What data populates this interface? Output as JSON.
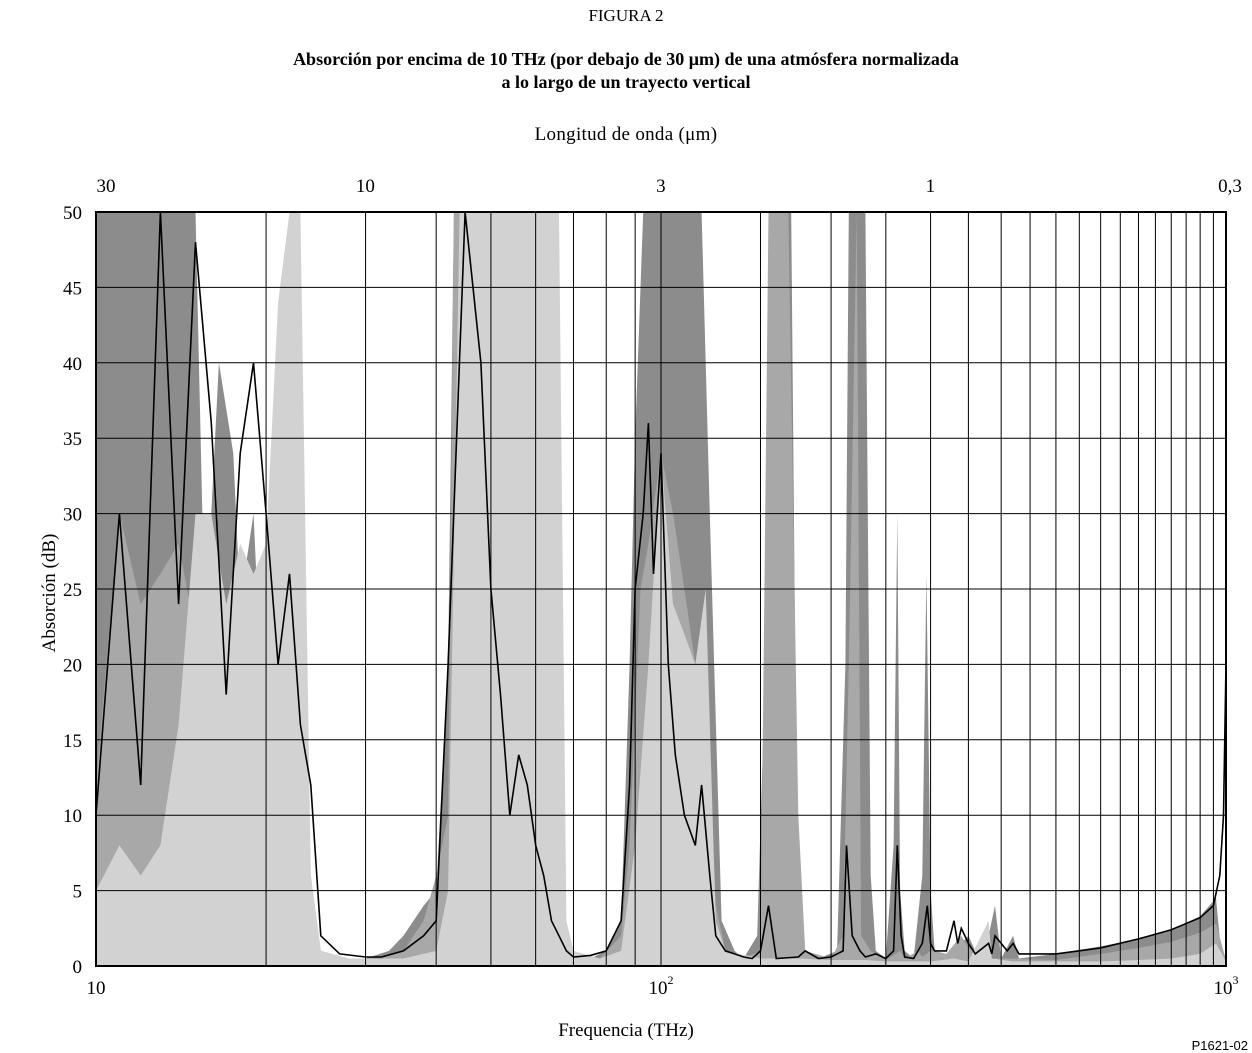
{
  "figure_number": "FIGURA 2",
  "title_line1": "Absorción por encima de 10 THz (por debajo de 30 μm) de una atmósfera normalizada",
  "title_line2": "a lo largo de un trayecto vertical",
  "reference": "P1621-02",
  "chart_data": {
    "type": "area",
    "x_scale": "log",
    "xlabel": "Frequencia (THz)",
    "ylabel": "Absorción (dB)",
    "top_axis_label": "Longitud de onda  (μm)",
    "xlim": [
      10,
      1000
    ],
    "ylim": [
      0,
      50
    ],
    "y_ticks": [
      0,
      5,
      10,
      15,
      20,
      25,
      30,
      35,
      40,
      45,
      50
    ],
    "x_tick_labels": [
      {
        "value": 10,
        "base": "10",
        "exp": ""
      },
      {
        "value": 100,
        "base": "10",
        "exp": "2"
      },
      {
        "value": 1000,
        "base": "10",
        "exp": "3"
      }
    ],
    "top_tick_labels": [
      {
        "wavelength_um": 30,
        "label": "30"
      },
      {
        "wavelength_um": 10,
        "label": "10"
      },
      {
        "wavelength_um": 3,
        "label": "3"
      },
      {
        "wavelength_um": 1,
        "label": "1"
      },
      {
        "wavelength_um": 0.3,
        "label": "0,3"
      }
    ],
    "grid": true,
    "colors": {
      "dark": "#8c8c8c",
      "medium": "#a8a8a8",
      "light": "#d2d2d2",
      "line": "#000000"
    },
    "series": [
      {
        "style": "dark",
        "points": [
          [
            10,
            50
          ],
          [
            11,
            50
          ],
          [
            12,
            50
          ],
          [
            13,
            50
          ],
          [
            14,
            50
          ],
          [
            15,
            50
          ],
          [
            15.6,
            22
          ],
          [
            16.5,
            40
          ],
          [
            17.5,
            34
          ],
          [
            18,
            24
          ],
          [
            19,
            30
          ],
          [
            20,
            12
          ],
          [
            21,
            22
          ],
          [
            22,
            10
          ],
          [
            23,
            14
          ],
          [
            24,
            4
          ],
          [
            24.5,
            1
          ],
          [
            26,
            0.5
          ],
          [
            28,
            0.5
          ],
          [
            30,
            0.5
          ],
          [
            33,
            1
          ],
          [
            35,
            2
          ],
          [
            38,
            4
          ],
          [
            40,
            5
          ],
          [
            42,
            20
          ],
          [
            43,
            50
          ],
          [
            48,
            50
          ],
          [
            49,
            30
          ],
          [
            52,
            20
          ],
          [
            55,
            14
          ],
          [
            58,
            16
          ],
          [
            60,
            10
          ],
          [
            62,
            8
          ],
          [
            64,
            4
          ],
          [
            66,
            1
          ],
          [
            70,
            0.5
          ],
          [
            75,
            0.5
          ],
          [
            80,
            1
          ],
          [
            85,
            3
          ],
          [
            88,
            20
          ],
          [
            90,
            35
          ],
          [
            93,
            50
          ],
          [
            110,
            50
          ],
          [
            118,
            50
          ],
          [
            122,
            30
          ],
          [
            128,
            3
          ],
          [
            135,
            1
          ],
          [
            140,
            0.5
          ],
          [
            148,
            2
          ],
          [
            153,
            20
          ],
          [
            156,
            50
          ],
          [
            170,
            50
          ],
          [
            174,
            8
          ],
          [
            180,
            1
          ],
          [
            190,
            0.5
          ],
          [
            205,
            1
          ],
          [
            212,
            20
          ],
          [
            215,
            50
          ],
          [
            230,
            50
          ],
          [
            235,
            6
          ],
          [
            240,
            1
          ],
          [
            250,
            0.5
          ],
          [
            258,
            8
          ],
          [
            262,
            30
          ],
          [
            265,
            5
          ],
          [
            270,
            1
          ],
          [
            280,
            0.5
          ],
          [
            290,
            6
          ],
          [
            295,
            26
          ],
          [
            300,
            5
          ],
          [
            305,
            1
          ],
          [
            320,
            0.5
          ],
          [
            340,
            1.5
          ],
          [
            350,
            2
          ],
          [
            360,
            1
          ],
          [
            380,
            2
          ],
          [
            390,
            4
          ],
          [
            400,
            0.5
          ],
          [
            420,
            2
          ],
          [
            430,
            0.5
          ],
          [
            500,
            0.8
          ],
          [
            600,
            1.3
          ],
          [
            700,
            1.8
          ],
          [
            800,
            2.4
          ],
          [
            900,
            3.3
          ],
          [
            960,
            4.5
          ],
          [
            985,
            0
          ],
          [
            1000,
            0
          ]
        ]
      },
      {
        "style": "medium",
        "points": [
          [
            10,
            12
          ],
          [
            11,
            30
          ],
          [
            12,
            24
          ],
          [
            13,
            26
          ],
          [
            14,
            28
          ],
          [
            15,
            22
          ],
          [
            16,
            26
          ],
          [
            17,
            20
          ],
          [
            18,
            24
          ],
          [
            19,
            20
          ],
          [
            20,
            14
          ],
          [
            21,
            24
          ],
          [
            22,
            18
          ],
          [
            23,
            12
          ],
          [
            24,
            6
          ],
          [
            25,
            1
          ],
          [
            28,
            0.5
          ],
          [
            32,
            0.5
          ],
          [
            35,
            1
          ],
          [
            38,
            3
          ],
          [
            40,
            6
          ],
          [
            42,
            10
          ],
          [
            43,
            50
          ],
          [
            45,
            50
          ],
          [
            48,
            30
          ],
          [
            52,
            10
          ],
          [
            55,
            8
          ],
          [
            58,
            12
          ],
          [
            60,
            8
          ],
          [
            62,
            6
          ],
          [
            64,
            3
          ],
          [
            66,
            1
          ],
          [
            70,
            0.5
          ],
          [
            78,
            0.5
          ],
          [
            85,
            2
          ],
          [
            88,
            8
          ],
          [
            92,
            25
          ],
          [
            95,
            28
          ],
          [
            100,
            34
          ],
          [
            105,
            30
          ],
          [
            110,
            25
          ],
          [
            115,
            20
          ],
          [
            120,
            18
          ],
          [
            125,
            4
          ],
          [
            130,
            1
          ],
          [
            140,
            0.5
          ],
          [
            150,
            1
          ],
          [
            155,
            50
          ],
          [
            160,
            50
          ],
          [
            168,
            50
          ],
          [
            175,
            10
          ],
          [
            180,
            1
          ],
          [
            200,
            0.5
          ],
          [
            210,
            2
          ],
          [
            215,
            20
          ],
          [
            222,
            50
          ],
          [
            226,
            2
          ],
          [
            235,
            1
          ],
          [
            250,
            0.4
          ],
          [
            265,
            1
          ],
          [
            270,
            0.5
          ],
          [
            285,
            1
          ],
          [
            290,
            0.6
          ],
          [
            300,
            1
          ],
          [
            305,
            1
          ],
          [
            320,
            0.8
          ],
          [
            340,
            2
          ],
          [
            350,
            1.2
          ],
          [
            380,
            0.5
          ],
          [
            400,
            0.5
          ],
          [
            500,
            0.4
          ],
          [
            600,
            0.8
          ],
          [
            700,
            1.2
          ],
          [
            800,
            1.6
          ],
          [
            900,
            2.2
          ],
          [
            960,
            2.8
          ],
          [
            990,
            1
          ],
          [
            1000,
            0.4
          ]
        ]
      },
      {
        "style": "light",
        "points": [
          [
            10,
            5
          ],
          [
            11,
            8
          ],
          [
            12,
            6
          ],
          [
            13,
            8
          ],
          [
            14,
            16
          ],
          [
            15,
            30
          ],
          [
            16,
            30
          ],
          [
            17,
            24
          ],
          [
            18,
            28
          ],
          [
            19,
            26
          ],
          [
            20,
            28
          ],
          [
            21,
            44
          ],
          [
            22,
            50
          ],
          [
            23,
            50
          ],
          [
            24,
            6
          ],
          [
            25,
            1
          ],
          [
            28,
            0.5
          ],
          [
            35,
            0.5
          ],
          [
            40,
            1
          ],
          [
            42,
            5
          ],
          [
            44,
            50
          ],
          [
            48,
            50
          ],
          [
            55,
            50
          ],
          [
            62,
            50
          ],
          [
            66,
            50
          ],
          [
            68,
            3
          ],
          [
            70,
            1
          ],
          [
            78,
            0.5
          ],
          [
            85,
            1
          ],
          [
            90,
            8
          ],
          [
            95,
            20
          ],
          [
            100,
            34
          ],
          [
            105,
            24
          ],
          [
            110,
            22
          ],
          [
            115,
            20
          ],
          [
            120,
            25
          ],
          [
            125,
            3
          ],
          [
            130,
            1
          ],
          [
            150,
            0.5
          ],
          [
            175,
            0.5
          ],
          [
            200,
            0.4
          ],
          [
            230,
            0.4
          ],
          [
            250,
            0.3
          ],
          [
            300,
            0.3
          ],
          [
            330,
            0.5
          ],
          [
            350,
            0.3
          ],
          [
            380,
            3
          ],
          [
            385,
            0.5
          ],
          [
            420,
            0.3
          ],
          [
            500,
            0.3
          ],
          [
            600,
            0.3
          ],
          [
            700,
            0.4
          ],
          [
            800,
            0.5
          ],
          [
            900,
            0.8
          ],
          [
            960,
            1.5
          ],
          [
            1000,
            0.3
          ]
        ]
      },
      {
        "style": "line",
        "points": [
          [
            10,
            10
          ],
          [
            11,
            30
          ],
          [
            12,
            12
          ],
          [
            13,
            50
          ],
          [
            14,
            24
          ],
          [
            15,
            48
          ],
          [
            16,
            36
          ],
          [
            17,
            18
          ],
          [
            18,
            34
          ],
          [
            19,
            40
          ],
          [
            20,
            30
          ],
          [
            21,
            20
          ],
          [
            22,
            26
          ],
          [
            23,
            16
          ],
          [
            24,
            12
          ],
          [
            25,
            2
          ],
          [
            27,
            0.8
          ],
          [
            30,
            0.6
          ],
          [
            32,
            0.6
          ],
          [
            35,
            1
          ],
          [
            38,
            2
          ],
          [
            40,
            3
          ],
          [
            42,
            20
          ],
          [
            45,
            50
          ],
          [
            48,
            40
          ],
          [
            50,
            25
          ],
          [
            52,
            18
          ],
          [
            54,
            10
          ],
          [
            56,
            14
          ],
          [
            58,
            12
          ],
          [
            60,
            8
          ],
          [
            62,
            6
          ],
          [
            64,
            3
          ],
          [
            66,
            2
          ],
          [
            68,
            1
          ],
          [
            70,
            0.6
          ],
          [
            75,
            0.7
          ],
          [
            80,
            1
          ],
          [
            85,
            3
          ],
          [
            88,
            12
          ],
          [
            90,
            25
          ],
          [
            93,
            30
          ],
          [
            95,
            36
          ],
          [
            97,
            26
          ],
          [
            100,
            34
          ],
          [
            103,
            20
          ],
          [
            106,
            14
          ],
          [
            110,
            10
          ],
          [
            115,
            8
          ],
          [
            118,
            12
          ],
          [
            122,
            6
          ],
          [
            125,
            2
          ],
          [
            130,
            1
          ],
          [
            135,
            0.8
          ],
          [
            140,
            0.6
          ],
          [
            145,
            0.5
          ],
          [
            150,
            1
          ],
          [
            155,
            4
          ],
          [
            160,
            0.5
          ],
          [
            175,
            0.6
          ],
          [
            180,
            1
          ],
          [
            190,
            0.5
          ],
          [
            200,
            0.6
          ],
          [
            210,
            1
          ],
          [
            213,
            8
          ],
          [
            218,
            2
          ],
          [
            225,
            1
          ],
          [
            230,
            0.6
          ],
          [
            240,
            0.8
          ],
          [
            250,
            0.5
          ],
          [
            258,
            1
          ],
          [
            262,
            8
          ],
          [
            266,
            2
          ],
          [
            270,
            0.6
          ],
          [
            280,
            0.5
          ],
          [
            290,
            1.5
          ],
          [
            296,
            4
          ],
          [
            300,
            1.5
          ],
          [
            305,
            1
          ],
          [
            320,
            1
          ],
          [
            330,
            3
          ],
          [
            335,
            1.5
          ],
          [
            340,
            2.5
          ],
          [
            350,
            1.5
          ],
          [
            360,
            0.8
          ],
          [
            380,
            1.5
          ],
          [
            385,
            0.8
          ],
          [
            390,
            2
          ],
          [
            400,
            1.5
          ],
          [
            410,
            1
          ],
          [
            420,
            1.5
          ],
          [
            430,
            0.8
          ],
          [
            500,
            0.8
          ],
          [
            600,
            1.2
          ],
          [
            700,
            1.8
          ],
          [
            800,
            2.4
          ],
          [
            900,
            3.2
          ],
          [
            950,
            4
          ],
          [
            975,
            6
          ],
          [
            990,
            10
          ],
          [
            1000,
            20
          ]
        ]
      }
    ]
  }
}
